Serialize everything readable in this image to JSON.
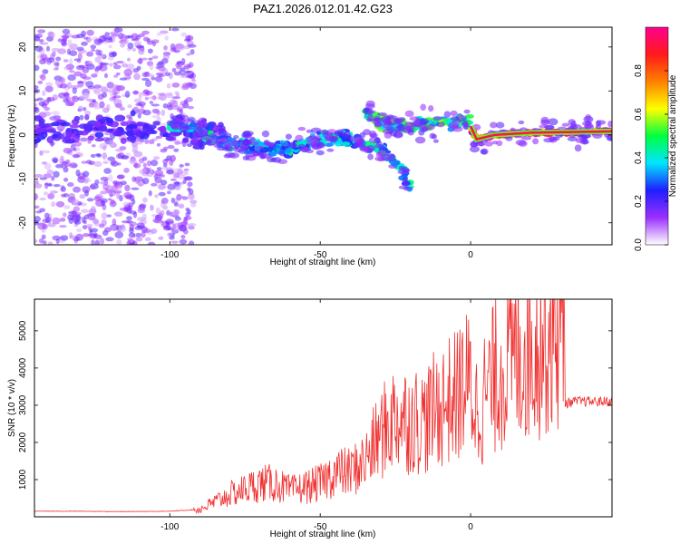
{
  "title": "PAZ1.2026.012.01.42.G23",
  "chart_data": [
    {
      "type": "heatmap",
      "name": "spectrogram",
      "xlabel": "Height of straight line (km)",
      "ylabel": "Frequency (Hz)",
      "xlim": [
        -145,
        47
      ],
      "ylim": [
        -25,
        24.5
      ],
      "xticks": [
        -100,
        -50,
        0
      ],
      "yticks": [
        -20,
        -10,
        0,
        10,
        20
      ],
      "colorbar": {
        "label": "Normalized spectral amplitude",
        "range": [
          0,
          1
        ],
        "ticks": [
          0.0,
          0.2,
          0.4,
          0.6,
          0.8
        ],
        "colors": [
          "#ffffff",
          "#9b30ff",
          "#1e1eff",
          "#00e5ff",
          "#00ff40",
          "#ffff00",
          "#ff8000",
          "#ff1a1a",
          "#ff0090"
        ]
      },
      "features": [
        {
          "label": "noise scatter",
          "x_range": [
            -145,
            -92
          ],
          "freq_range": [
            -25,
            24
          ],
          "amplitude": 0.1
        },
        {
          "label": "main signal trace",
          "points": [
            [
              -100,
              2
            ],
            [
              -90,
              1
            ],
            [
              -80,
              -2
            ],
            [
              -70,
              -3
            ],
            [
              -60,
              -3
            ],
            [
              -50,
              -1
            ],
            [
              -40,
              -1
            ],
            [
              -30,
              -3
            ],
            [
              -25,
              -6
            ],
            [
              -20,
              -12
            ]
          ],
          "amplitude": 0.35
        },
        {
          "label": "branch",
          "points": [
            [
              -35,
              5
            ],
            [
              -30,
              3
            ],
            [
              -25,
              2
            ],
            [
              -20,
              2
            ],
            [
              -10,
              3
            ],
            [
              0,
              3
            ]
          ],
          "amplitude": 0.45
        },
        {
          "label": "tracked line",
          "points": [
            [
              0,
              2
            ],
            [
              2,
              -1
            ],
            [
              8,
              0
            ],
            [
              20,
              0.5
            ],
            [
              47,
              0.8
            ]
          ],
          "amplitude": 0.9
        }
      ]
    },
    {
      "type": "line",
      "name": "snr",
      "xlabel": "Height of straight line (km)",
      "ylabel": "SNR (10 * v/v)",
      "xlim": [
        -145,
        47
      ],
      "ylim": [
        0,
        5850
      ],
      "xticks": [
        -100,
        -50,
        0
      ],
      "yticks": [
        1000,
        2000,
        3000,
        4000,
        5000
      ],
      "color": "#f03030",
      "series": [
        {
          "name": "SNR",
          "x": [
            -145,
            -130,
            -115,
            -100,
            -90,
            -85,
            -80,
            -75,
            -70,
            -65,
            -60,
            -55,
            -50,
            -45,
            -40,
            -35,
            -30,
            -25,
            -20,
            -15,
            -10,
            -5,
            -2,
            0,
            2,
            5,
            10,
            15,
            20,
            25,
            30,
            31,
            35,
            40,
            47
          ],
          "values": [
            150,
            150,
            140,
            150,
            200,
            400,
            600,
            750,
            900,
            900,
            700,
            800,
            900,
            1200,
            1200,
            1500,
            2200,
            2700,
            2600,
            2600,
            3000,
            3200,
            3600,
            3500,
            2900,
            3300,
            4000,
            4300,
            4600,
            4900,
            5100,
            3050,
            3100,
            3100,
            3100
          ]
        }
      ]
    }
  ]
}
